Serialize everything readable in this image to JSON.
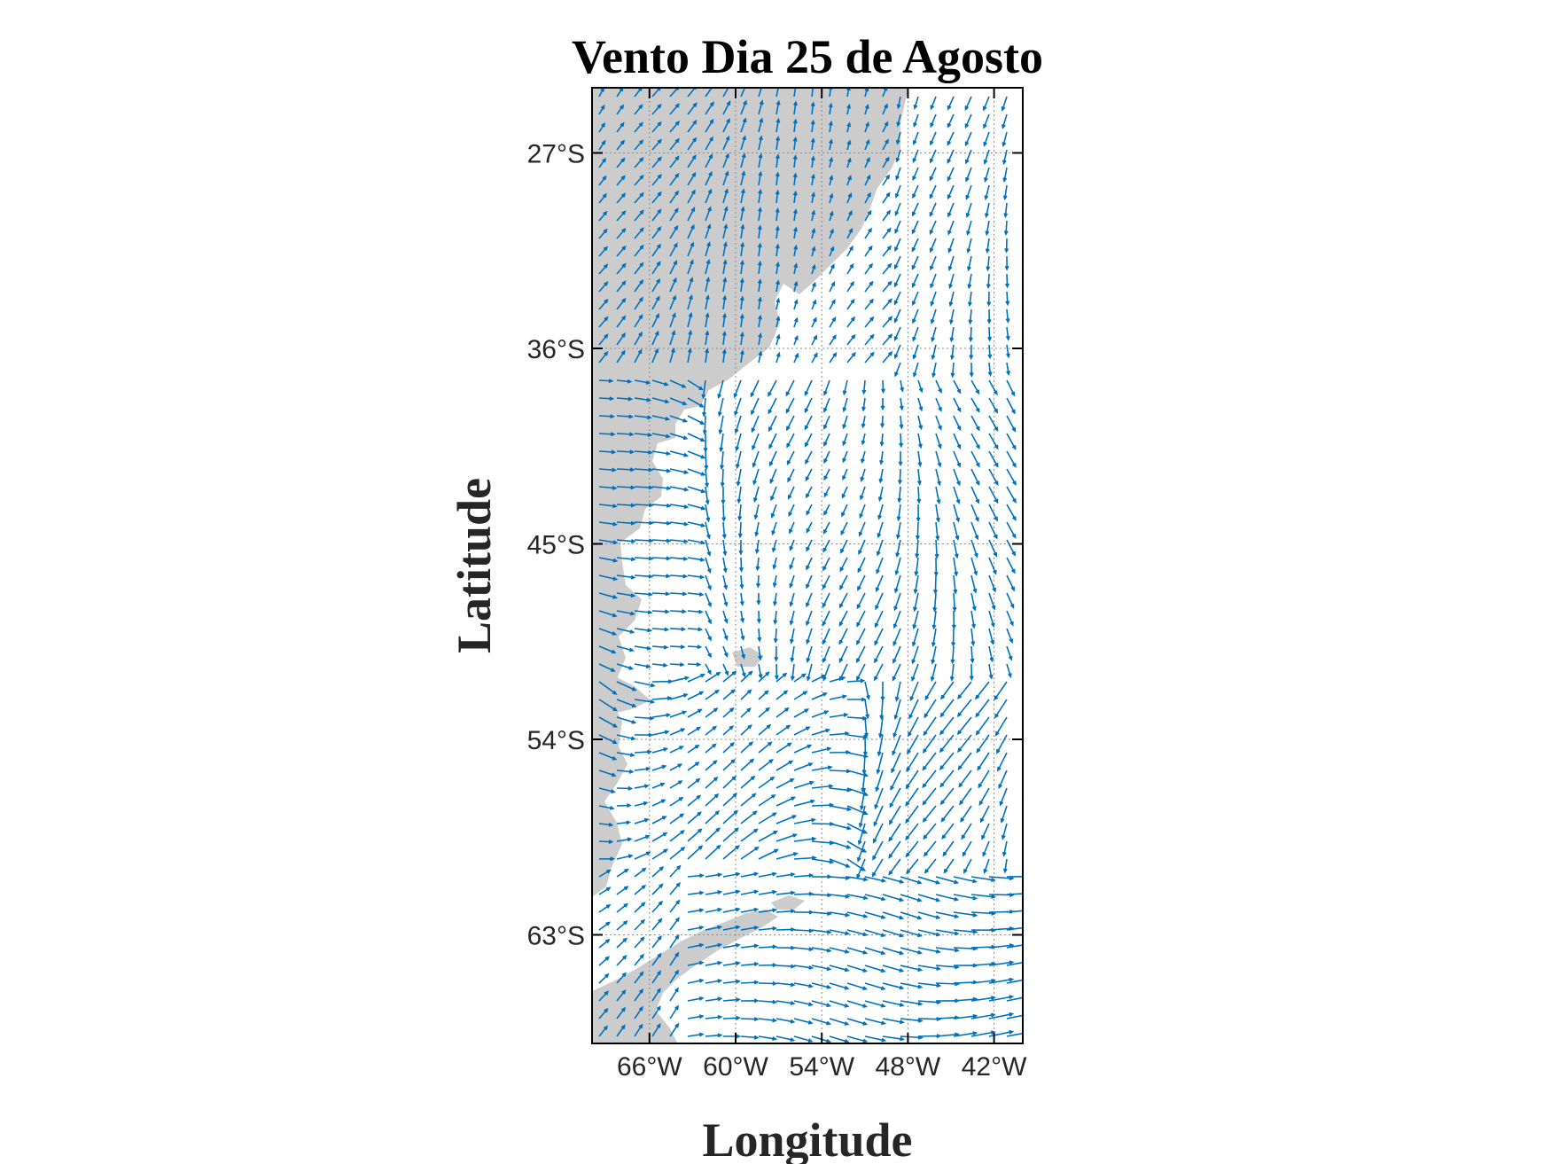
{
  "map": {
    "title": "Vento Dia 25 de Agosto",
    "xlabel": "Longitude",
    "ylabel": "Latitude",
    "lon_range": [
      -70,
      -40
    ],
    "lat_range": [
      -24,
      -68
    ],
    "lon_ticks": [
      {
        "value": -66,
        "label": "66°W"
      },
      {
        "value": -60,
        "label": "60°W"
      },
      {
        "value": -54,
        "label": "54°W"
      },
      {
        "value": -48,
        "label": "48°W"
      },
      {
        "value": -42,
        "label": "42°W"
      }
    ],
    "lat_ticks": [
      {
        "value": -27,
        "label": "27°S"
      },
      {
        "value": -36,
        "label": "36°S"
      },
      {
        "value": -45,
        "label": "45°S"
      },
      {
        "value": -54,
        "label": "54°S"
      },
      {
        "value": -63,
        "label": "63°S"
      }
    ],
    "grid": true,
    "land_color": "#cccccc",
    "vector_color": "#0072bd",
    "vector_field": "wind vectors over the South Atlantic"
  }
}
